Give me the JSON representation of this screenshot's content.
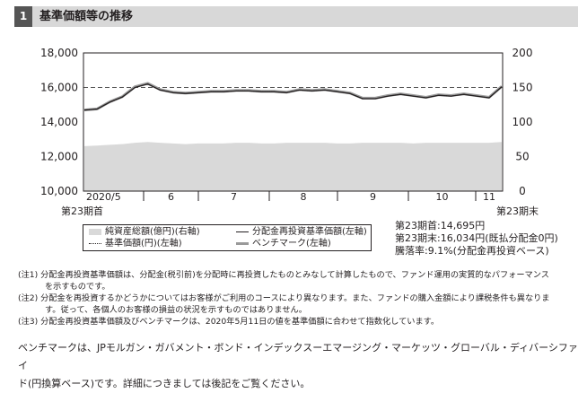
{
  "header": {
    "number": "1",
    "title": "基準価額等の推移"
  },
  "chart_data": {
    "type": "line",
    "y_left": {
      "ticks": [
        "18,000",
        "16,000",
        "14,000",
        "12,000",
        "10,000"
      ],
      "range": [
        10000,
        18000
      ]
    },
    "y_right": {
      "ticks": [
        "200",
        "150",
        "100",
        "50",
        "0"
      ],
      "range": [
        0,
        200
      ]
    },
    "x_labels": [
      "2020/5",
      "6",
      "7",
      "8",
      "9",
      "10",
      "11"
    ],
    "x_start_label": "第23期首",
    "x_end_label": "第23期末",
    "grid": "dashed at 16,000",
    "series": [
      {
        "name": "純資産総額(億円)(右軸)",
        "axis": "right",
        "type": "area",
        "color": "#d9d9d9",
        "values": [
          65,
          66,
          67,
          68,
          70,
          71,
          70,
          69,
          68,
          69,
          69,
          69,
          70,
          70,
          69,
          69,
          70,
          70,
          70,
          70,
          69,
          69,
          70,
          70,
          70,
          70,
          69,
          70,
          70,
          70,
          70,
          70,
          70,
          71
        ]
      },
      {
        "name": "分配金再投資基準価額(左軸)",
        "axis": "left",
        "type": "line",
        "color": "#231f20",
        "values": [
          14695,
          14750,
          15150,
          15450,
          16000,
          16200,
          15850,
          15700,
          15650,
          15700,
          15750,
          15750,
          15800,
          15800,
          15750,
          15750,
          15700,
          15850,
          15800,
          15850,
          15750,
          15650,
          15350,
          15350,
          15500,
          15600,
          15500,
          15400,
          15550,
          15500,
          15600,
          15500,
          15400,
          16034
        ]
      },
      {
        "name": "基準価額(円)(左軸)",
        "axis": "left",
        "type": "line",
        "color": "#231f20",
        "values": [
          14695,
          14750,
          15150,
          15450,
          16000,
          16200,
          15850,
          15700,
          15650,
          15700,
          15750,
          15750,
          15800,
          15800,
          15750,
          15750,
          15700,
          15850,
          15800,
          15850,
          15750,
          15650,
          15350,
          15350,
          15500,
          15600,
          15500,
          15400,
          15550,
          15500,
          15600,
          15500,
          15400,
          16034
        ]
      },
      {
        "name": "ベンチマーク(左軸)",
        "axis": "left",
        "type": "line",
        "color": "#9a9a9a",
        "values": [
          14695,
          14760,
          15170,
          15470,
          16040,
          16240,
          15880,
          15730,
          15680,
          15730,
          15780,
          15780,
          15830,
          15830,
          15780,
          15780,
          15730,
          15880,
          15830,
          15880,
          15780,
          15680,
          15380,
          15380,
          15530,
          15630,
          15530,
          15430,
          15580,
          15530,
          15630,
          15530,
          15430,
          16060
        ]
      }
    ]
  },
  "legend": [
    {
      "label": "純資産総額(億円)(右軸)"
    },
    {
      "label": "分配金再投資基準価額(左軸)"
    },
    {
      "label": "基準価額(円)(左軸)"
    },
    {
      "label": "ベンチマーク(左軸)"
    }
  ],
  "summary": {
    "start": "第23期首:14,695円",
    "end": "第23期末:16,034円(既払分配金0円)",
    "change": "騰落率:9.1%(分配金再投資ベース)"
  },
  "notes": {
    "n1_a": "(注1) 分配金再投資基準価額は、分配金(税引前)を分配時に再投資したものとみなして計算したもので、ファンド運用の実質的なパフォーマンス",
    "n1_b": "を示すものです。",
    "n2_a": "(注2) 分配金を再投資するかどうかについてはお客様がご利用のコースにより異なります。また、ファンドの購入金額により課税条件も異なりま",
    "n2_b": "す。従って、各個人のお客様の損益の状況を示すものではありません。",
    "n3": "(注3) 分配金再投資基準価額及びベンチマークは、2020年5月11日の値を基準価額に合わせて指数化しています。"
  },
  "benchmark_text": {
    "line1": "ベンチマークは、JPモルガン・ガバメント・ボンド・インデックスーエマージング・マーケッツ・グローバル・ディバーシファイ",
    "line2": "ド(円換算ベース)です。詳細につきましては後記をご覧ください。"
  }
}
